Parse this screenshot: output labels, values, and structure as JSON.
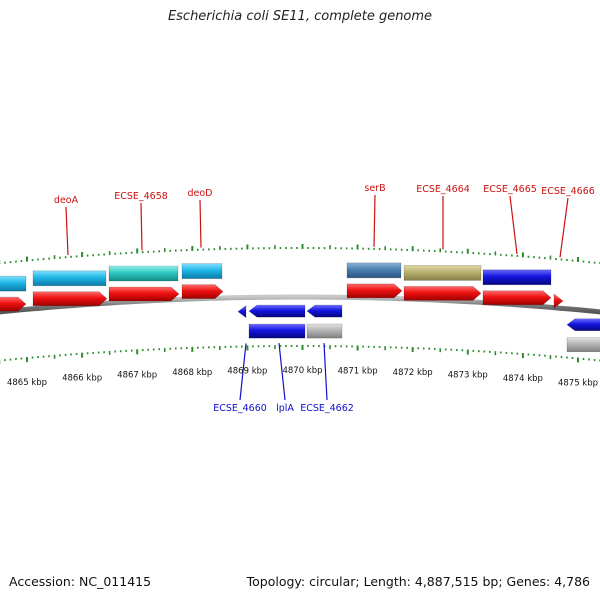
{
  "title": "Escherichia coli SE11, complete genome",
  "footer": {
    "accession": "Accession: NC_011415",
    "summary": "Topology: circular; Length: 4,887,515 bp; Genes: 4,786"
  },
  "colors": {
    "backbone": "#8a8a8a",
    "tick": "#2e8b2e",
    "forward_label": "#cc1111",
    "reverse_label": "#1111cc",
    "cds": "#ee1111",
    "cyan": "#1fb7e6",
    "teal": "#2ec8c0",
    "steel": "#4a7fb0",
    "olive": "#b8b070",
    "blue": "#1414e0",
    "gray": "#b4b4b4"
  },
  "kbp_labels": [
    "4865 kbp",
    "4866 kbp",
    "4867 kbp",
    "4868 kbp",
    "4869 kbp",
    "4870 kbp",
    "4871 kbp",
    "4872 kbp",
    "4873 kbp",
    "4874 kbp",
    "4875 kbp"
  ],
  "forward_gene_labels": [
    "deoA",
    "ECSE_4658",
    "deoD",
    "serB",
    "ECSE_4664",
    "ECSE_4665",
    "ECSE_4666"
  ],
  "reverse_gene_labels": [
    "ECSE_4660",
    "lplA",
    "ECSE_4662"
  ]
}
